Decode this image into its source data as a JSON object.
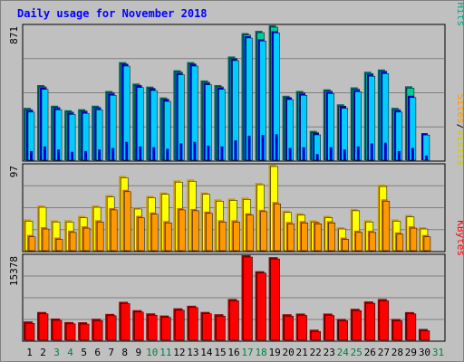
{
  "title": "Daily usage for November 2018",
  "colors": {
    "background": "#c0c0c0",
    "panel": "#c0c0c0",
    "grid": "#808080",
    "hits": "#00cccc",
    "hits_shadow": "#006666",
    "files": "#00ccff",
    "files_shadow": "#0000cc",
    "visits": "#ffff00",
    "visits_shadow": "#cc9900",
    "sites": "#ff9900",
    "sites_shadow": "#cc6600",
    "kbytes": "#ff0000",
    "kbytes_shadow": "#990000",
    "weekday_label": "#000000",
    "weekend_label": "#008040"
  },
  "chart_data": [
    {
      "type": "bar",
      "panel": "pages-files-hits",
      "categories": [
        "1",
        "2",
        "3",
        "4",
        "5",
        "6",
        "7",
        "8",
        "9",
        "10",
        "11",
        "12",
        "13",
        "14",
        "15",
        "16",
        "17",
        "18",
        "19",
        "20",
        "21",
        "22",
        "23",
        "24",
        "25",
        "26",
        "27",
        "28",
        "29",
        "30",
        "31"
      ],
      "ytick_label": "871",
      "ymax": 871,
      "legend": [
        "Pages",
        "Files",
        "Hits"
      ],
      "series": [
        {
          "name": "Hits",
          "values": [
            331,
            480,
            345,
            315,
            322,
            345,
            441,
            630,
            490,
            470,
            399,
            577,
            630,
            510,
            480,
            667,
            820,
            835,
            871,
            410,
            441,
            180,
            452,
            354,
            465,
            567,
            582,
            331,
            472,
            0,
            0
          ]
        },
        {
          "name": "Files",
          "values": [
            315,
            464,
            330,
            300,
            307,
            330,
            425,
            616,
            476,
            456,
            385,
            560,
            616,
            494,
            464,
            652,
            800,
            780,
            833,
            397,
            425,
            166,
            436,
            340,
            448,
            550,
            567,
            315,
            410,
            165,
            0
          ]
        },
        {
          "name": "Pages",
          "values": [
            60,
            90,
            70,
            55,
            60,
            70,
            80,
            120,
            90,
            85,
            75,
            110,
            120,
            95,
            90,
            130,
            160,
            165,
            170,
            80,
            85,
            40,
            85,
            70,
            90,
            110,
            115,
            60,
            80,
            30,
            0
          ]
        }
      ]
    },
    {
      "type": "bar",
      "panel": "sites-visits",
      "categories": [
        "1",
        "2",
        "3",
        "4",
        "5",
        "6",
        "7",
        "8",
        "9",
        "10",
        "11",
        "12",
        "13",
        "14",
        "15",
        "16",
        "17",
        "18",
        "19",
        "20",
        "21",
        "22",
        "23",
        "24",
        "25",
        "26",
        "27",
        "28",
        "29",
        "30",
        "31"
      ],
      "ytick_label": "97",
      "ymax": 97,
      "legend": [
        "Sites",
        "Visits"
      ],
      "series": [
        {
          "name": "Visits",
          "values": [
            34,
            50,
            33,
            33,
            38,
            50,
            62,
            84,
            48,
            61,
            65,
            79,
            80,
            65,
            57,
            58,
            59,
            76,
            97,
            44,
            41,
            33,
            38,
            25,
            46,
            33,
            74,
            34,
            39,
            25,
            0
          ]
        },
        {
          "name": "Sites",
          "values": [
            16,
            25,
            13,
            21,
            26,
            33,
            47,
            68,
            38,
            42,
            32,
            47,
            46,
            43,
            33,
            33,
            41,
            45,
            54,
            31,
            32,
            31,
            32,
            13,
            21,
            21,
            57,
            19,
            26,
            16,
            0
          ]
        }
      ]
    },
    {
      "type": "bar",
      "panel": "kbytes",
      "categories": [
        "1",
        "2",
        "3",
        "4",
        "5",
        "6",
        "7",
        "8",
        "9",
        "10",
        "11",
        "12",
        "13",
        "14",
        "15",
        "16",
        "17",
        "18",
        "19",
        "20",
        "21",
        "22",
        "23",
        "24",
        "25",
        "26",
        "27",
        "28",
        "29",
        "30",
        "31"
      ],
      "ytick_label": "15378",
      "ymax": 15378,
      "legend": [
        "KBytes"
      ],
      "series": [
        {
          "name": "KBytes",
          "values": [
            3150,
            4890,
            3680,
            3030,
            3000,
            3640,
            4540,
            6770,
            5220,
            4640,
            4240,
            5570,
            6040,
            4900,
            4480,
            7290,
            15378,
            12420,
            15020,
            4480,
            4600,
            1620,
            4600,
            3610,
            5480,
            6840,
            7290,
            3600,
            4870,
            1760,
            0
          ]
        }
      ]
    }
  ],
  "x_labels": [
    {
      "day": "1",
      "weekend": false
    },
    {
      "day": "2",
      "weekend": false
    },
    {
      "day": "3",
      "weekend": true
    },
    {
      "day": "4",
      "weekend": true
    },
    {
      "day": "5",
      "weekend": false
    },
    {
      "day": "6",
      "weekend": false
    },
    {
      "day": "7",
      "weekend": false
    },
    {
      "day": "8",
      "weekend": false
    },
    {
      "day": "9",
      "weekend": false
    },
    {
      "day": "10",
      "weekend": true
    },
    {
      "day": "11",
      "weekend": true
    },
    {
      "day": "12",
      "weekend": false
    },
    {
      "day": "13",
      "weekend": false
    },
    {
      "day": "14",
      "weekend": false
    },
    {
      "day": "15",
      "weekend": false
    },
    {
      "day": "16",
      "weekend": false
    },
    {
      "day": "17",
      "weekend": true
    },
    {
      "day": "18",
      "weekend": true
    },
    {
      "day": "19",
      "weekend": false
    },
    {
      "day": "20",
      "weekend": false
    },
    {
      "day": "21",
      "weekend": false
    },
    {
      "day": "22",
      "weekend": false
    },
    {
      "day": "23",
      "weekend": false
    },
    {
      "day": "24",
      "weekend": true
    },
    {
      "day": "25",
      "weekend": true
    },
    {
      "day": "26",
      "weekend": false
    },
    {
      "day": "27",
      "weekend": false
    },
    {
      "day": "28",
      "weekend": false
    },
    {
      "day": "29",
      "weekend": false
    },
    {
      "day": "30",
      "weekend": false
    },
    {
      "day": "31",
      "weekend": true
    }
  ]
}
